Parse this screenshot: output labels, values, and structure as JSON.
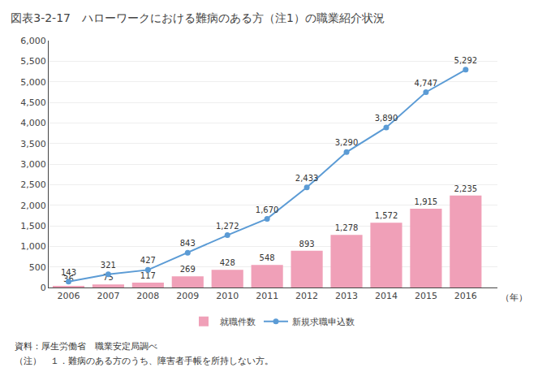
{
  "chart_data": {
    "type": "bar",
    "title": "図表3-2-17　ハローワークにおける難病のある方（注1）の職業紹介状況",
    "xlabel": "（年）",
    "annotations": [
      "資料：厚生労働省　職業安定局調べ",
      "（注）　１．難病のある方のうち、障害者手帳を所持しない方。"
    ],
    "x": [
      2006,
      2007,
      2008,
      2009,
      2010,
      2011,
      2012,
      2013,
      2014,
      2015,
      2016
    ],
    "xlim": [
      2005.5,
      2016.8
    ],
    "xticks": [
      2006,
      2007,
      2008,
      2009,
      2010,
      2011,
      2012,
      2013,
      2014,
      2015,
      2016
    ],
    "ylim": [
      0,
      6000
    ],
    "yticks": [
      0,
      500,
      {
        "value": 1000,
        "label": "1,000"
      },
      {
        "value": 1500,
        "label": "1,500"
      },
      {
        "value": 2000,
        "label": "2,000"
      },
      {
        "value": 2500,
        "label": "2,500"
      },
      {
        "value": 3000,
        "label": "3,000"
      },
      {
        "value": 3500,
        "label": "3,500"
      },
      {
        "value": 4000,
        "label": "4,000"
      },
      {
        "value": 4500,
        "label": "4,500"
      },
      {
        "value": 5000,
        "label": "5,000"
      },
      {
        "value": 5500,
        "label": "5,500"
      },
      {
        "value": 6000,
        "label": "6,000"
      }
    ],
    "grid": true,
    "legend": "bottom",
    "data_labels": true,
    "series": [
      {
        "name": "就職件数",
        "type": "bar",
        "color": "#f0a0b8",
        "values": [
          36,
          75,
          117,
          269,
          428,
          548,
          893,
          1278,
          1572,
          1915,
          2235
        ],
        "value_labels": [
          "36",
          "75",
          "117",
          "269",
          "428",
          "548",
          "893",
          "1,278",
          "1,572",
          "1,915",
          "2,235"
        ]
      },
      {
        "name": "新規求職申込数",
        "type": "line",
        "marker": "circle",
        "color": "#5b9bd5",
        "values": [
          143,
          321,
          427,
          843,
          1272,
          1670,
          2433,
          3290,
          3890,
          4747,
          5292
        ],
        "value_labels": [
          "143",
          "321",
          "427",
          "843",
          "1,272",
          "1,670",
          "2,433",
          "3,290",
          "3,890",
          "4,747",
          "5,292"
        ]
      }
    ]
  }
}
